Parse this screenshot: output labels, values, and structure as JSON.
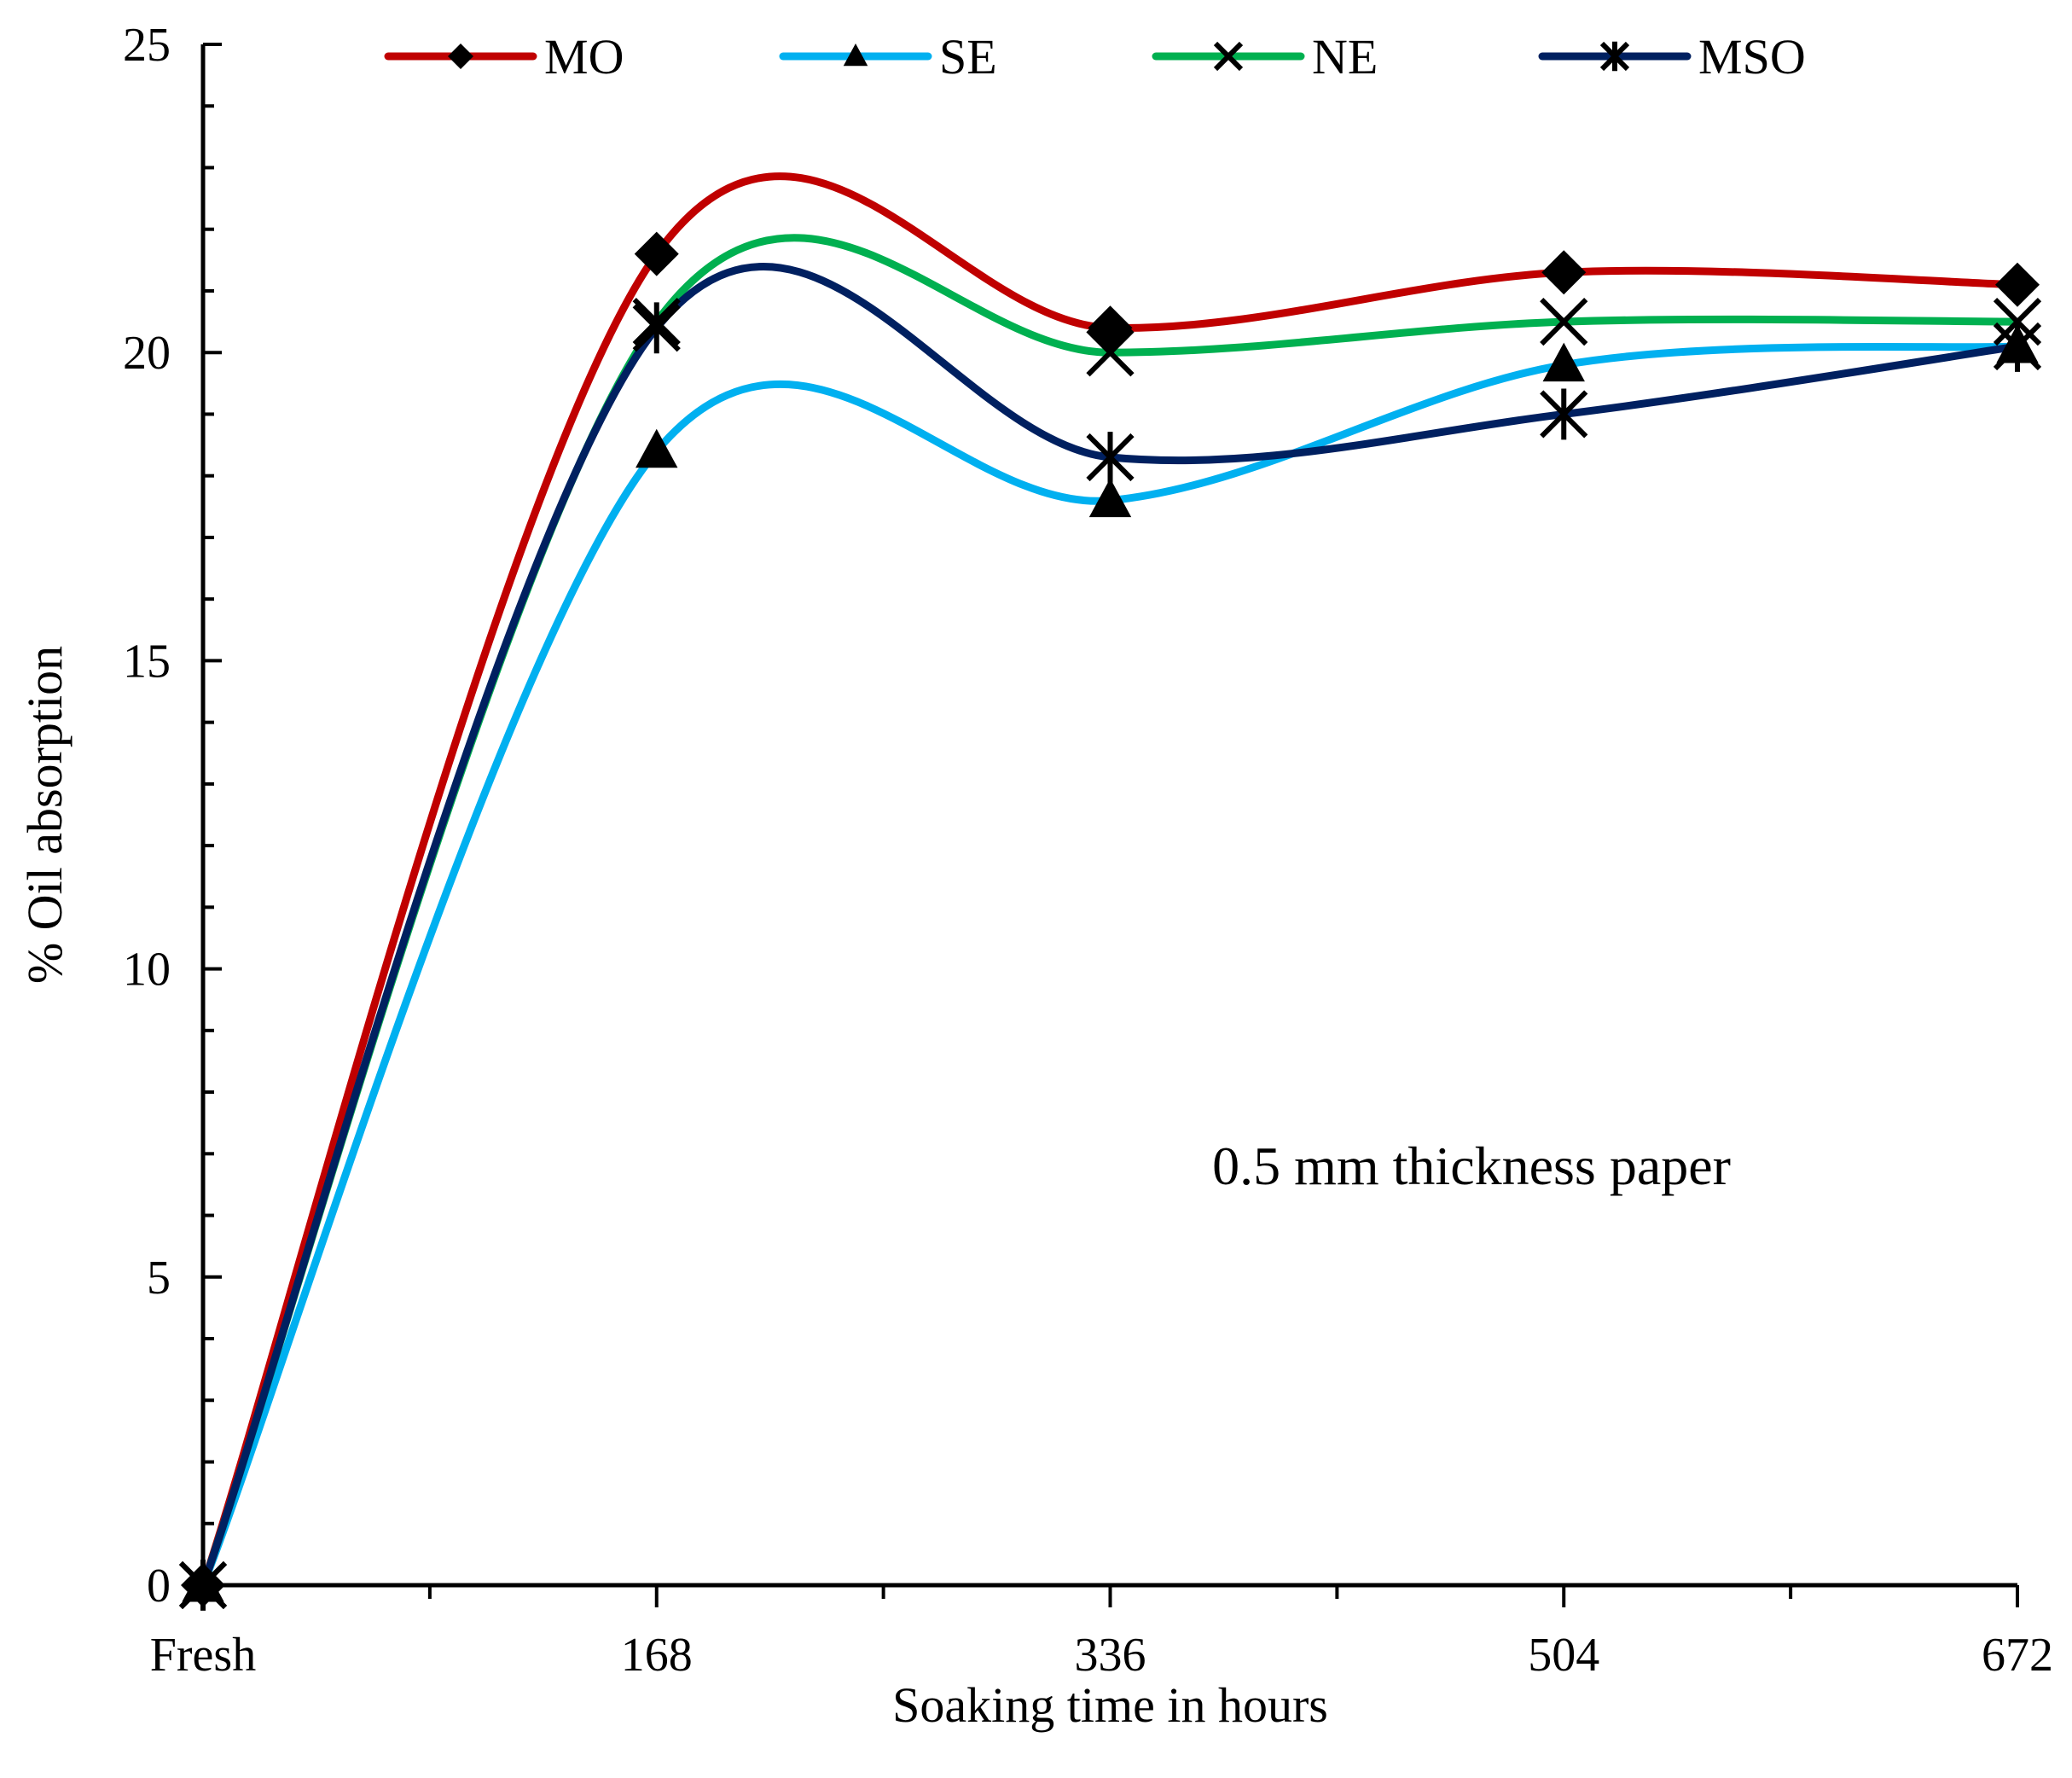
{
  "chart_data": {
    "type": "line",
    "smooth": true,
    "categories": [
      "Fresh",
      "168",
      "336",
      "504",
      "672"
    ],
    "xlabel": "Soaking time in hours",
    "ylabel": "% Oil absorption",
    "ylim": [
      0,
      25
    ],
    "yticks": [
      0,
      5,
      10,
      15,
      20,
      25
    ],
    "grid": false,
    "legend_position": "top",
    "annotation": "0.5 mm thickness paper",
    "series": [
      {
        "name": "MO",
        "color": "#c00000",
        "marker": "diamond",
        "values": [
          0,
          21.6,
          20.4,
          21.3,
          21.1
        ]
      },
      {
        "name": "SE",
        "color": "#00b0f0",
        "marker": "triangle",
        "values": [
          0,
          18.4,
          17.6,
          19.8,
          20.1
        ]
      },
      {
        "name": "NE",
        "color": "#00b050",
        "marker": "x",
        "values": [
          0,
          20.5,
          20.0,
          20.5,
          20.5
        ]
      },
      {
        "name": "MSO",
        "color": "#002060",
        "marker": "star",
        "values": [
          0,
          20.4,
          18.3,
          19.0,
          20.1
        ]
      }
    ]
  }
}
